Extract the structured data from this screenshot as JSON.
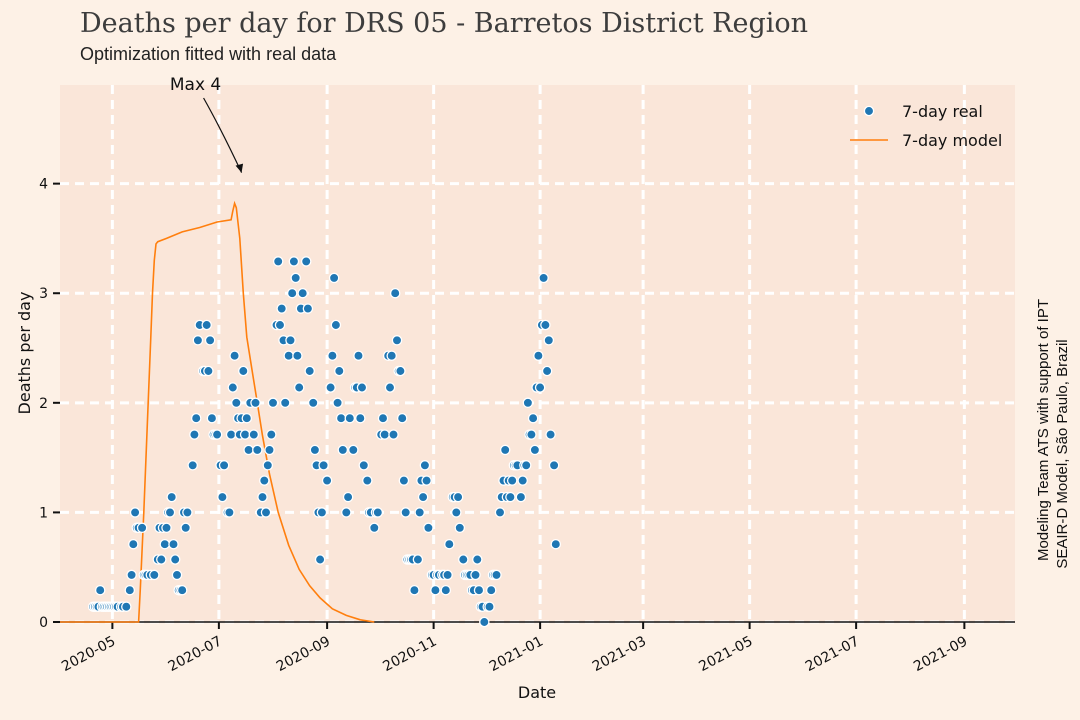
{
  "chart_data": {
    "type": "scatter",
    "title": "Deaths per day for DRS 05 - Barretos District Region",
    "subtitle": "Optimization fitted with real data",
    "xlabel": "Date",
    "ylabel": "Deaths per day",
    "xlim": [
      "2020-04-01",
      "2021-09-30"
    ],
    "ylim": [
      0,
      4.9
    ],
    "x_ticks": [
      "2020-05",
      "2020-07",
      "2020-09",
      "2020-11",
      "2021-01",
      "2021-03",
      "2021-05",
      "2021-07",
      "2021-09"
    ],
    "y_ticks": [
      0,
      1,
      2,
      3,
      4
    ],
    "grid": true,
    "legend_position": "top-right",
    "colors": {
      "real": "#1f77b4",
      "model": "#ff7f0e",
      "plot_bg": "#fae6d9",
      "page_bg": "#fdf1e6",
      "grid": "#ffffff"
    },
    "annotation": {
      "text": "Max 4",
      "x": "2020-07-14",
      "y": 4.1
    },
    "side_note": [
      "Modeling Team ATS with support of IPT",
      "SEAIR-D Model, São Paulo, Brazil"
    ],
    "series": [
      {
        "name": "7-day real",
        "style": "markers",
        "points": [
          [
            "2020-04-20",
            0.14
          ],
          [
            "2020-04-21",
            0.14
          ],
          [
            "2020-04-22",
            0.14
          ],
          [
            "2020-04-23",
            0.14
          ],
          [
            "2020-04-24",
            0.29
          ],
          [
            "2020-04-25",
            0.14
          ],
          [
            "2020-04-26",
            0.14
          ],
          [
            "2020-04-27",
            0.14
          ],
          [
            "2020-04-28",
            0.14
          ],
          [
            "2020-04-29",
            0.14
          ],
          [
            "2020-04-30",
            0.14
          ],
          [
            "2020-05-01",
            0.14
          ],
          [
            "2020-05-02",
            0.14
          ],
          [
            "2020-05-03",
            0.14
          ],
          [
            "2020-05-04",
            0.14
          ],
          [
            "2020-05-06",
            0.14
          ],
          [
            "2020-05-07",
            0.14
          ],
          [
            "2020-05-09",
            0.14
          ],
          [
            "2020-05-11",
            0.29
          ],
          [
            "2020-05-12",
            0.43
          ],
          [
            "2020-05-13",
            0.71
          ],
          [
            "2020-05-14",
            1.0
          ],
          [
            "2020-05-15",
            0.86
          ],
          [
            "2020-05-16",
            0.86
          ],
          [
            "2020-05-18",
            0.86
          ],
          [
            "2020-05-19",
            0.43
          ],
          [
            "2020-05-20",
            0.43
          ],
          [
            "2020-05-21",
            0.43
          ],
          [
            "2020-05-23",
            0.43
          ],
          [
            "2020-05-25",
            0.43
          ],
          [
            "2020-05-27",
            0.57
          ],
          [
            "2020-05-28",
            0.86
          ],
          [
            "2020-05-29",
            0.57
          ],
          [
            "2020-05-30",
            0.86
          ],
          [
            "2020-05-31",
            0.71
          ],
          [
            "2020-06-01",
            0.86
          ],
          [
            "2020-06-02",
            1.0
          ],
          [
            "2020-06-03",
            1.0
          ],
          [
            "2020-06-04",
            1.14
          ],
          [
            "2020-06-05",
            0.71
          ],
          [
            "2020-06-06",
            0.57
          ],
          [
            "2020-06-07",
            0.43
          ],
          [
            "2020-06-08",
            0.29
          ],
          [
            "2020-06-09",
            0.29
          ],
          [
            "2020-06-10",
            0.29
          ],
          [
            "2020-06-11",
            1.0
          ],
          [
            "2020-06-12",
            0.86
          ],
          [
            "2020-06-13",
            1.0
          ],
          [
            "2020-06-16",
            1.43
          ],
          [
            "2020-06-17",
            1.71
          ],
          [
            "2020-06-18",
            1.86
          ],
          [
            "2020-06-19",
            2.57
          ],
          [
            "2020-06-20",
            2.71
          ],
          [
            "2020-06-22",
            2.29
          ],
          [
            "2020-06-23",
            2.29
          ],
          [
            "2020-06-24",
            2.71
          ],
          [
            "2020-06-25",
            2.29
          ],
          [
            "2020-06-26",
            2.57
          ],
          [
            "2020-06-27",
            1.86
          ],
          [
            "2020-06-28",
            1.71
          ],
          [
            "2020-06-29",
            1.71
          ],
          [
            "2020-06-30",
            1.71
          ],
          [
            "2020-07-02",
            1.43
          ],
          [
            "2020-07-03",
            1.14
          ],
          [
            "2020-07-04",
            1.43
          ],
          [
            "2020-07-06",
            1.0
          ],
          [
            "2020-07-07",
            1.0
          ],
          [
            "2020-07-08",
            1.71
          ],
          [
            "2020-07-09",
            2.14
          ],
          [
            "2020-07-10",
            2.43
          ],
          [
            "2020-07-11",
            2.0
          ],
          [
            "2020-07-12",
            1.86
          ],
          [
            "2020-07-13",
            1.71
          ],
          [
            "2020-07-14",
            1.86
          ],
          [
            "2020-07-15",
            2.29
          ],
          [
            "2020-07-16",
            1.71
          ],
          [
            "2020-07-17",
            1.86
          ],
          [
            "2020-07-18",
            1.57
          ],
          [
            "2020-07-19",
            2.0
          ],
          [
            "2020-07-21",
            1.71
          ],
          [
            "2020-07-22",
            2.0
          ],
          [
            "2020-07-23",
            1.57
          ],
          [
            "2020-07-25",
            1.0
          ],
          [
            "2020-07-26",
            1.14
          ],
          [
            "2020-07-27",
            1.29
          ],
          [
            "2020-07-28",
            1.0
          ],
          [
            "2020-07-29",
            1.43
          ],
          [
            "2020-07-30",
            1.57
          ],
          [
            "2020-07-31",
            1.71
          ],
          [
            "2020-08-01",
            2.0
          ],
          [
            "2020-08-03",
            2.71
          ],
          [
            "2020-08-04",
            3.29
          ],
          [
            "2020-08-05",
            2.71
          ],
          [
            "2020-08-06",
            2.86
          ],
          [
            "2020-08-07",
            2.57
          ],
          [
            "2020-08-08",
            2.0
          ],
          [
            "2020-08-10",
            2.43
          ],
          [
            "2020-08-11",
            2.57
          ],
          [
            "2020-08-12",
            3.0
          ],
          [
            "2020-08-13",
            3.29
          ],
          [
            "2020-08-14",
            3.14
          ],
          [
            "2020-08-15",
            2.43
          ],
          [
            "2020-08-16",
            2.14
          ],
          [
            "2020-08-17",
            2.86
          ],
          [
            "2020-08-18",
            3.0
          ],
          [
            "2020-08-20",
            3.29
          ],
          [
            "2020-08-21",
            2.86
          ],
          [
            "2020-08-22",
            2.29
          ],
          [
            "2020-08-24",
            2.0
          ],
          [
            "2020-08-25",
            1.57
          ],
          [
            "2020-08-26",
            1.43
          ],
          [
            "2020-08-27",
            1.0
          ],
          [
            "2020-08-28",
            0.57
          ],
          [
            "2020-08-29",
            1.0
          ],
          [
            "2020-08-30",
            1.43
          ],
          [
            "2020-09-01",
            1.29
          ],
          [
            "2020-09-03",
            2.14
          ],
          [
            "2020-09-04",
            2.43
          ],
          [
            "2020-09-05",
            3.14
          ],
          [
            "2020-09-06",
            2.71
          ],
          [
            "2020-09-07",
            2.0
          ],
          [
            "2020-09-08",
            2.29
          ],
          [
            "2020-09-09",
            1.86
          ],
          [
            "2020-09-10",
            1.57
          ],
          [
            "2020-09-12",
            1.0
          ],
          [
            "2020-09-13",
            1.14
          ],
          [
            "2020-09-14",
            1.86
          ],
          [
            "2020-09-16",
            1.57
          ],
          [
            "2020-09-17",
            2.14
          ],
          [
            "2020-09-18",
            2.14
          ],
          [
            "2020-09-19",
            2.43
          ],
          [
            "2020-09-20",
            1.86
          ],
          [
            "2020-09-21",
            2.14
          ],
          [
            "2020-09-22",
            1.43
          ],
          [
            "2020-09-24",
            1.29
          ],
          [
            "2020-09-25",
            1.0
          ],
          [
            "2020-09-26",
            1.0
          ],
          [
            "2020-09-28",
            0.86
          ],
          [
            "2020-09-29",
            1.0
          ],
          [
            "2020-09-30",
            1.0
          ],
          [
            "2020-10-02",
            1.71
          ],
          [
            "2020-10-03",
            1.86
          ],
          [
            "2020-10-04",
            1.71
          ],
          [
            "2020-10-06",
            2.43
          ],
          [
            "2020-10-07",
            2.14
          ],
          [
            "2020-10-08",
            2.43
          ],
          [
            "2020-10-09",
            1.71
          ],
          [
            "2020-10-10",
            3.0
          ],
          [
            "2020-10-11",
            2.57
          ],
          [
            "2020-10-12",
            2.29
          ],
          [
            "2020-10-13",
            2.29
          ],
          [
            "2020-10-14",
            1.86
          ],
          [
            "2020-10-15",
            1.29
          ],
          [
            "2020-10-16",
            1.0
          ],
          [
            "2020-10-17",
            0.57
          ],
          [
            "2020-10-18",
            0.57
          ],
          [
            "2020-10-19",
            0.57
          ],
          [
            "2020-10-20",
            0.57
          ],
          [
            "2020-10-21",
            0.29
          ],
          [
            "2020-10-23",
            0.57
          ],
          [
            "2020-10-24",
            1.0
          ],
          [
            "2020-10-25",
            1.29
          ],
          [
            "2020-10-26",
            1.14
          ],
          [
            "2020-10-27",
            1.43
          ],
          [
            "2020-10-28",
            1.29
          ],
          [
            "2020-10-29",
            0.86
          ],
          [
            "2020-10-31",
            0.43
          ],
          [
            "2020-11-01",
            0.43
          ],
          [
            "2020-11-02",
            0.29
          ],
          [
            "2020-11-03",
            0.43
          ],
          [
            "2020-11-04",
            0.43
          ],
          [
            "2020-11-06",
            0.43
          ],
          [
            "2020-11-07",
            0.43
          ],
          [
            "2020-11-08",
            0.29
          ],
          [
            "2020-11-09",
            0.43
          ],
          [
            "2020-11-10",
            0.71
          ],
          [
            "2020-11-12",
            1.14
          ],
          [
            "2020-11-13",
            1.14
          ],
          [
            "2020-11-14",
            1.0
          ],
          [
            "2020-11-15",
            1.14
          ],
          [
            "2020-11-16",
            0.86
          ],
          [
            "2020-11-18",
            0.57
          ],
          [
            "2020-11-19",
            0.43
          ],
          [
            "2020-11-20",
            0.43
          ],
          [
            "2020-11-21",
            0.43
          ],
          [
            "2020-11-22",
            0.43
          ],
          [
            "2020-11-23",
            0.29
          ],
          [
            "2020-11-24",
            0.29
          ],
          [
            "2020-11-25",
            0.43
          ],
          [
            "2020-11-26",
            0.57
          ],
          [
            "2020-11-27",
            0.29
          ],
          [
            "2020-11-28",
            0.14
          ],
          [
            "2020-11-29",
            0.14
          ],
          [
            "2020-11-30",
            0.0
          ],
          [
            "2020-12-02",
            0.14
          ],
          [
            "2020-12-03",
            0.14
          ],
          [
            "2020-12-04",
            0.29
          ],
          [
            "2020-12-05",
            0.43
          ],
          [
            "2020-12-06",
            0.43
          ],
          [
            "2020-12-07",
            0.43
          ],
          [
            "2020-12-09",
            1.0
          ],
          [
            "2020-12-10",
            1.14
          ],
          [
            "2020-12-11",
            1.29
          ],
          [
            "2020-12-12",
            1.57
          ],
          [
            "2020-12-13",
            1.14
          ],
          [
            "2020-12-14",
            1.29
          ],
          [
            "2020-12-15",
            1.14
          ],
          [
            "2020-12-16",
            1.29
          ],
          [
            "2020-12-17",
            1.43
          ],
          [
            "2020-12-18",
            1.43
          ],
          [
            "2020-12-19",
            1.43
          ],
          [
            "2020-12-21",
            1.14
          ],
          [
            "2020-12-22",
            1.29
          ],
          [
            "2020-12-23",
            1.43
          ],
          [
            "2020-12-24",
            1.43
          ],
          [
            "2020-12-25",
            2.0
          ],
          [
            "2020-12-26",
            1.71
          ],
          [
            "2020-12-27",
            1.71
          ],
          [
            "2020-12-28",
            1.86
          ],
          [
            "2020-12-29",
            1.57
          ],
          [
            "2020-12-30",
            2.14
          ],
          [
            "2020-12-31",
            2.43
          ],
          [
            "2021-01-01",
            2.14
          ],
          [
            "2021-01-02",
            2.71
          ],
          [
            "2021-01-03",
            3.14
          ],
          [
            "2021-01-04",
            2.71
          ],
          [
            "2021-01-05",
            2.29
          ],
          [
            "2021-01-06",
            2.57
          ],
          [
            "2021-01-07",
            1.71
          ],
          [
            "2021-01-09",
            1.43
          ],
          [
            "2021-01-10",
            0.71
          ]
        ]
      },
      {
        "name": "7-day model",
        "style": "line",
        "points": [
          [
            "2020-04-01",
            0
          ],
          [
            "2020-05-10",
            0
          ],
          [
            "2020-05-16",
            0.0
          ],
          [
            "2020-05-17",
            0.3
          ],
          [
            "2020-05-19",
            1.0
          ],
          [
            "2020-05-21",
            1.8
          ],
          [
            "2020-05-23",
            2.6
          ],
          [
            "2020-05-24",
            3.0
          ],
          [
            "2020-05-25",
            3.3
          ],
          [
            "2020-05-26",
            3.45
          ],
          [
            "2020-05-27",
            3.47
          ],
          [
            "2020-06-01",
            3.5
          ],
          [
            "2020-06-10",
            3.56
          ],
          [
            "2020-06-20",
            3.6
          ],
          [
            "2020-06-30",
            3.65
          ],
          [
            "2020-07-08",
            3.67
          ],
          [
            "2020-07-09",
            3.75
          ],
          [
            "2020-07-10",
            3.82
          ],
          [
            "2020-07-11",
            3.78
          ],
          [
            "2020-07-13",
            3.5
          ],
          [
            "2020-07-15",
            3.0
          ],
          [
            "2020-07-17",
            2.6
          ],
          [
            "2020-07-20",
            2.3
          ],
          [
            "2020-07-23",
            2.0
          ],
          [
            "2020-07-26",
            1.7
          ],
          [
            "2020-07-30",
            1.35
          ],
          [
            "2020-08-04",
            1.0
          ],
          [
            "2020-08-10",
            0.7
          ],
          [
            "2020-08-16",
            0.48
          ],
          [
            "2020-08-22",
            0.33
          ],
          [
            "2020-08-28",
            0.22
          ],
          [
            "2020-09-04",
            0.12
          ],
          [
            "2020-09-12",
            0.06
          ],
          [
            "2020-09-20",
            0.02
          ],
          [
            "2020-09-28",
            0.0
          ]
        ]
      }
    ]
  }
}
